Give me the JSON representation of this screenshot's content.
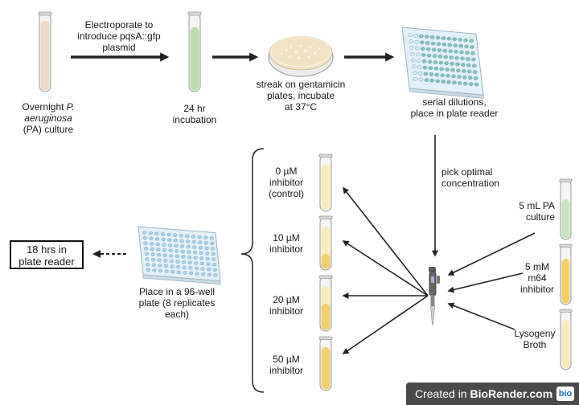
{
  "step1": {
    "label_pre": "Overnight ",
    "label_italic1": "P.",
    "label_italic2": "aeruginosa",
    "label_post": "(PA) culture"
  },
  "step1_arrow": {
    "line1": "Electroporate to",
    "line2": "introduce pqsA::gfp",
    "line3": "plasmid"
  },
  "step2": {
    "line1": "24 hr",
    "line2": "incubation"
  },
  "step3": {
    "line1": "streak on gentamicin",
    "line2": "plates, incubate",
    "line3": "at 37°C"
  },
  "step4": {
    "line1": "serial dilutions,",
    "line2": "place in plate reader"
  },
  "step5": {
    "line1": "pick optimal",
    "line2": "concentration"
  },
  "reagents": [
    {
      "line1": "5 mL PA",
      "line2": "culture",
      "line3": ""
    },
    {
      "line1": "5 mM",
      "line2": "m64",
      "line3": "inhibitor"
    },
    {
      "line1": "Lysogeny",
      "line2": "Broth",
      "line3": ""
    }
  ],
  "tubes": [
    {
      "line1": "0 µM",
      "line2": "inhibitor",
      "line3": "(control)"
    },
    {
      "line1": "10 µM",
      "line2": "inhibitor",
      "line3": ""
    },
    {
      "line1": "20 µM",
      "line2": "inhibitor",
      "line3": ""
    },
    {
      "line1": "50 µM",
      "line2": "inhibitor",
      "line3": ""
    }
  ],
  "plate_step": {
    "line1": "Place in a 96-well",
    "line2": "plate (8 replicates",
    "line3": "each)"
  },
  "final_step": {
    "line1": "18 hrs in",
    "line2": "plate reader"
  },
  "badge": {
    "prefix": "Created in ",
    "brand": "BioRender.com",
    "logo": "bio"
  },
  "colors": {
    "tube_culture": "#ecd9c8",
    "tube_gfp": "#b9dcae",
    "tube_yellow_light": "#f8ecbe",
    "tube_yellow": "#f2cf6a",
    "tube_green": "#c8e4bd",
    "plate_teal": "#7fc4b4",
    "plate_blue": "#a8d3ee",
    "plate_body": "#e2f0f7",
    "arrow": "#222222"
  }
}
